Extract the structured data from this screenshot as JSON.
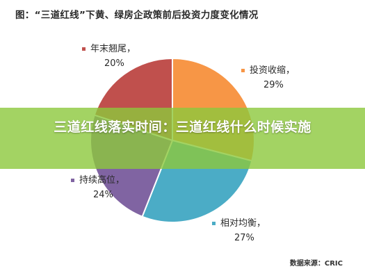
{
  "chart_title": "图：“三道红线”下黄、绿房企政策前后投资力度变化情况",
  "chart_data": {
    "type": "pie",
    "title": "图：“三道红线”下黄、绿房企政策前后投资力度变化情况",
    "slices": [
      {
        "label": "投资收缩",
        "value": 29,
        "display": "29%",
        "color": "#F79646"
      },
      {
        "label": "相对均衡",
        "value": 27,
        "display": "27%",
        "color": "#4BACC6"
      },
      {
        "label": "持续高位",
        "value": 24,
        "display": "24%",
        "color": "#8064A2"
      },
      {
        "label": "年末翘尾",
        "value": 20,
        "display": "20%",
        "color": "#C0504D"
      }
    ],
    "start_at": "12 o'clock",
    "direction": "clockwise",
    "legend": "labels beside slices"
  },
  "banner": {
    "text": "三道红线落实时间：三道红线什么时候实施",
    "color": "#8CC83C"
  },
  "source": "数据来源：CRIC"
}
